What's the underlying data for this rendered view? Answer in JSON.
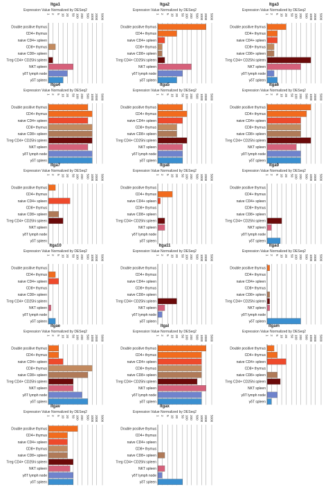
{
  "chart_data": {
    "type": "bar",
    "orientation": "horizontal",
    "scale": "log",
    "subtitle": "Expression Value Normalized by DESeq2",
    "categories": [
      "Double positive thymus",
      "CD4+ thymus",
      "naive CD4+ spleen",
      "CD8+ thymus",
      "naive CD8+ spleen",
      "Treg CD4+ CD25hi spleen",
      "NKT spleen",
      "γδT lymph node",
      "γδT spleen"
    ],
    "colors": [
      "#f26b1d",
      "#f26b1d",
      "#ee4a2c",
      "#c28a5f",
      "#b07a58",
      "#6b0a0a",
      "#d6607a",
      "#6f83cc",
      "#3a8fd0"
    ],
    "ticks": [
      "1",
      "2",
      "5",
      "10",
      "20",
      "50",
      "100",
      "200",
      "500",
      "1000",
      "2000",
      "5000"
    ],
    "xlim": [
      1,
      5000
    ],
    "charts": [
      {
        "title": "Itga1",
        "values": [
          null,
          null,
          null,
          3,
          null,
          2,
          50,
          20,
          10
        ]
      },
      {
        "title": "Itga2",
        "values": [
          2000,
          20,
          3,
          2,
          2,
          3,
          200,
          50,
          20
        ]
      },
      {
        "title": "Itga3",
        "values": [
          20,
          5,
          5,
          3,
          3,
          1000,
          200,
          3,
          5
        ]
      },
      {
        "title": "Itga4",
        "values": [
          500,
          1000,
          500,
          1000,
          1000,
          1000,
          500,
          1000,
          1000
        ]
      },
      {
        "title": "Itga5",
        "values": [
          50,
          100,
          50,
          20,
          20,
          100,
          50,
          50,
          50
        ]
      },
      {
        "title": "Itga6",
        "values": [
          1000,
          500,
          200,
          200,
          200,
          1000,
          100,
          200,
          200
        ]
      },
      {
        "title": "Itga7",
        "values": [
          3,
          null,
          30,
          null,
          5,
          10,
          null,
          null,
          null
        ]
      },
      {
        "title": "Itga8",
        "values": [
          null,
          10,
          1.5,
          null,
          null,
          3,
          3,
          null,
          null
        ]
      },
      {
        "title": "Itga9",
        "values": [
          null,
          null,
          null,
          null,
          null,
          10,
          2,
          null,
          8
        ]
      },
      {
        "title": "Itga10",
        "values": [
          null,
          3,
          5,
          null,
          null,
          null,
          1.5,
          null,
          3
        ]
      },
      {
        "title": "Itga11",
        "values": [
          null,
          null,
          null,
          null,
          null,
          20,
          3,
          2,
          null
        ]
      },
      {
        "title": "Itgad",
        "values": [
          1.5,
          null,
          null,
          null,
          1.5,
          1.5,
          1.5,
          null,
          200
        ]
      },
      {
        "title": "Itgae",
        "values": [
          5,
          5,
          10,
          1000,
          500,
          50,
          50,
          200,
          500
        ]
      },
      {
        "title": "Itgal",
        "values": [
          2000,
          1000,
          1000,
          1000,
          1000,
          500,
          2000,
          1000,
          1000
        ]
      },
      {
        "title": "Itgam",
        "values": [
          3,
          5,
          20,
          null,
          5,
          8,
          null,
          5,
          2
        ]
      },
      {
        "title": "Itgav",
        "values": [
          100,
          20,
          20,
          20,
          20,
          50,
          30,
          50,
          50
        ]
      },
      {
        "title": "Itgax",
        "values": [
          null,
          null,
          null,
          null,
          3,
          null,
          3,
          2,
          50
        ]
      }
    ]
  }
}
